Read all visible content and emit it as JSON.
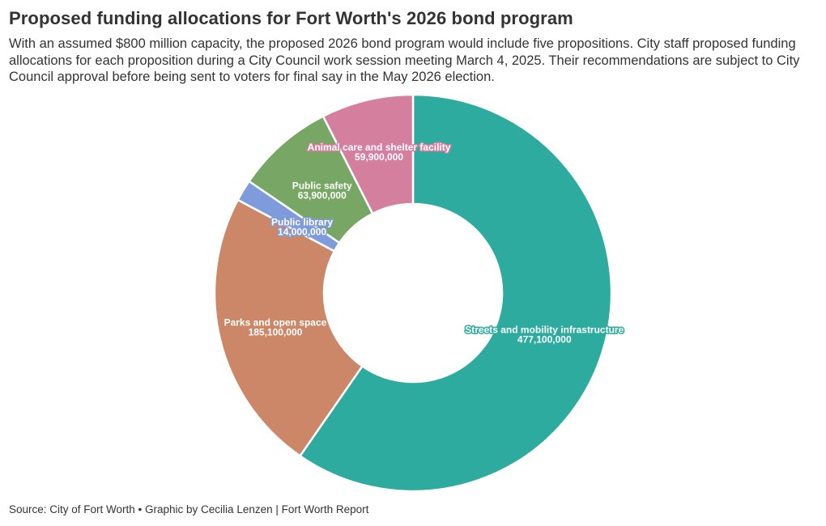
{
  "chart_data": {
    "type": "pie",
    "title": "Proposed funding allocations for Fort Worth's 2026 bond program",
    "subtitle": "With an assumed $800 million capacity, the proposed 2026 bond program would include five propositions. City staff proposed funding allocations for each proposition during a City Council work session meeting March 4, 2025. Their recommendations are subject to City Council approval before being sent to voters for final say in the May 2026 election.",
    "source": "Source: City of Fort Worth • Graphic by Cecilia Lenzen | Fort Worth Report",
    "donut": true,
    "categories": [
      "Streets and mobility infrastructure",
      "Parks and open space",
      "Public library",
      "Public safety",
      "Animal care and shelter facility"
    ],
    "values": [
      477100000,
      185100000,
      14000000,
      63900000,
      59900000
    ],
    "value_labels": [
      "477,100,000",
      "185,100,000",
      "14,000,000",
      "63,900,000",
      "59,900,000"
    ],
    "colors": [
      "#2eab9f",
      "#cb8767",
      "#7e9bdb",
      "#78a765",
      "#d57f9f"
    ]
  }
}
